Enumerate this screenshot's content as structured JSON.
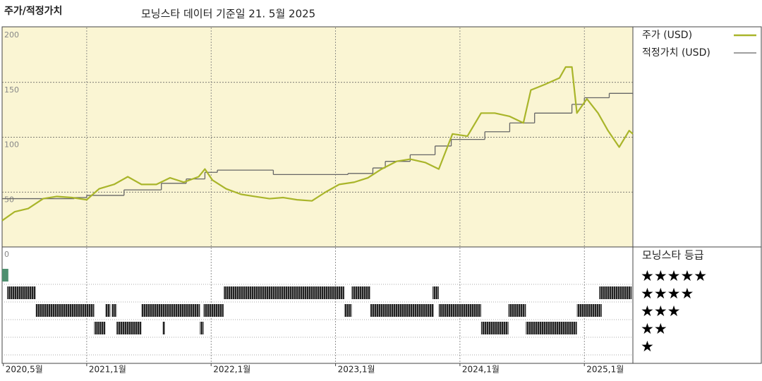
{
  "chart_data": {
    "type": "line",
    "title": "주가/적정가치",
    "subtitle": "모닝스타 데이터 기준일 21. 5월 2025",
    "xlim": [
      2020.32,
      2025.39
    ],
    "xticks": [
      {
        "value": 2020.33,
        "label": "2020,5월"
      },
      {
        "value": 2021.0,
        "label": "2021,1월"
      },
      {
        "value": 2022.0,
        "label": "2022,1월"
      },
      {
        "value": 2023.0,
        "label": "2023,1월"
      },
      {
        "value": 2024.0,
        "label": "2024,1월"
      },
      {
        "value": 2025.0,
        "label": "2025,1월"
      }
    ],
    "ylim": [
      0,
      200
    ],
    "yticks": [
      0,
      50,
      100,
      150,
      200
    ],
    "grid": true,
    "series": [
      {
        "name": "주가 (USD)",
        "color": "#a9b52a",
        "x": [
          2020.32,
          2020.42,
          2020.53,
          2020.65,
          2020.76,
          2020.88,
          2021.0,
          2021.1,
          2021.22,
          2021.33,
          2021.44,
          2021.56,
          2021.67,
          2021.78,
          2021.9,
          2021.95,
          2022.01,
          2022.12,
          2022.24,
          2022.35,
          2022.47,
          2022.58,
          2022.69,
          2022.81,
          2022.92,
          2023.03,
          2023.15,
          2023.26,
          2023.37,
          2023.49,
          2023.6,
          2023.72,
          2023.83,
          2023.94,
          2024.06,
          2024.17,
          2024.28,
          2024.4,
          2024.51,
          2024.57,
          2024.68,
          2024.8,
          2024.85,
          2024.9,
          2024.94,
          2025.02,
          2025.11,
          2025.19,
          2025.28,
          2025.36,
          2025.39
        ],
        "values": [
          24,
          32,
          35,
          44,
          46,
          45,
          43,
          53,
          57,
          64,
          57,
          57,
          63,
          59,
          64,
          71,
          61,
          53,
          48,
          46,
          44,
          45,
          43,
          42,
          50,
          57,
          59,
          63,
          71,
          78,
          80,
          77,
          71,
          103,
          101,
          122,
          122,
          119,
          113,
          143,
          148,
          154,
          164,
          164,
          122,
          135,
          122,
          106,
          91,
          106,
          103
        ]
      },
      {
        "name": "적정가치 (USD)",
        "color": "#666666",
        "step": true,
        "x": [
          2020.32,
          2020.9,
          2021.0,
          2021.3,
          2021.6,
          2021.8,
          2021.95,
          2022.05,
          2022.5,
          2023.1,
          2023.3,
          2023.4,
          2023.6,
          2023.8,
          2023.93,
          2024.2,
          2024.4,
          2024.6,
          2024.9,
          2025.0,
          2025.2,
          2025.39
        ],
        "values": [
          44,
          45,
          47,
          52,
          58,
          62,
          68,
          70,
          66,
          67,
          72,
          78,
          84,
          92,
          98,
          105,
          113,
          122,
          130,
          136,
          140,
          139
        ]
      }
    ],
    "rating": {
      "title": "모닝스타 등급",
      "levels": [
        {
          "stars": 5,
          "label": "★★★★★"
        },
        {
          "stars": 4,
          "label": "★★★★"
        },
        {
          "stars": 3,
          "label": "★★★"
        },
        {
          "stars": 2,
          "label": "★★"
        },
        {
          "stars": 1,
          "label": "★"
        }
      ],
      "periods": [
        {
          "stars": 5,
          "start": 2020.32,
          "end": 2020.37
        },
        {
          "stars": 4,
          "start": 2020.36,
          "end": 2020.59
        },
        {
          "stars": 3,
          "start": 2020.59,
          "end": 2021.06
        },
        {
          "stars": 2,
          "start": 2021.06,
          "end": 2021.15
        },
        {
          "stars": 3,
          "start": 2021.15,
          "end": 2021.19
        },
        {
          "stars": 3,
          "start": 2021.2,
          "end": 2021.24
        },
        {
          "stars": 2,
          "start": 2021.24,
          "end": 2021.44
        },
        {
          "stars": 3,
          "start": 2021.44,
          "end": 2021.91
        },
        {
          "stars": 2,
          "start": 2021.61,
          "end": 2021.63
        },
        {
          "stars": 2,
          "start": 2021.91,
          "end": 2021.94
        },
        {
          "stars": 3,
          "start": 2021.94,
          "end": 2022.1
        },
        {
          "stars": 4,
          "start": 2022.1,
          "end": 2023.07
        },
        {
          "stars": 3,
          "start": 2023.07,
          "end": 2023.13
        },
        {
          "stars": 4,
          "start": 2023.13,
          "end": 2023.28
        },
        {
          "stars": 3,
          "start": 2023.28,
          "end": 2023.79
        },
        {
          "stars": 4,
          "start": 2023.78,
          "end": 2023.83
        },
        {
          "stars": 3,
          "start": 2023.83,
          "end": 2024.17
        },
        {
          "stars": 2,
          "start": 2024.17,
          "end": 2024.39
        },
        {
          "stars": 3,
          "start": 2024.39,
          "end": 2024.53
        },
        {
          "stars": 2,
          "start": 2024.53,
          "end": 2024.94
        },
        {
          "stars": 3,
          "start": 2024.94,
          "end": 2025.14
        },
        {
          "stars": 4,
          "start": 2025.12,
          "end": 2025.38
        }
      ]
    }
  }
}
